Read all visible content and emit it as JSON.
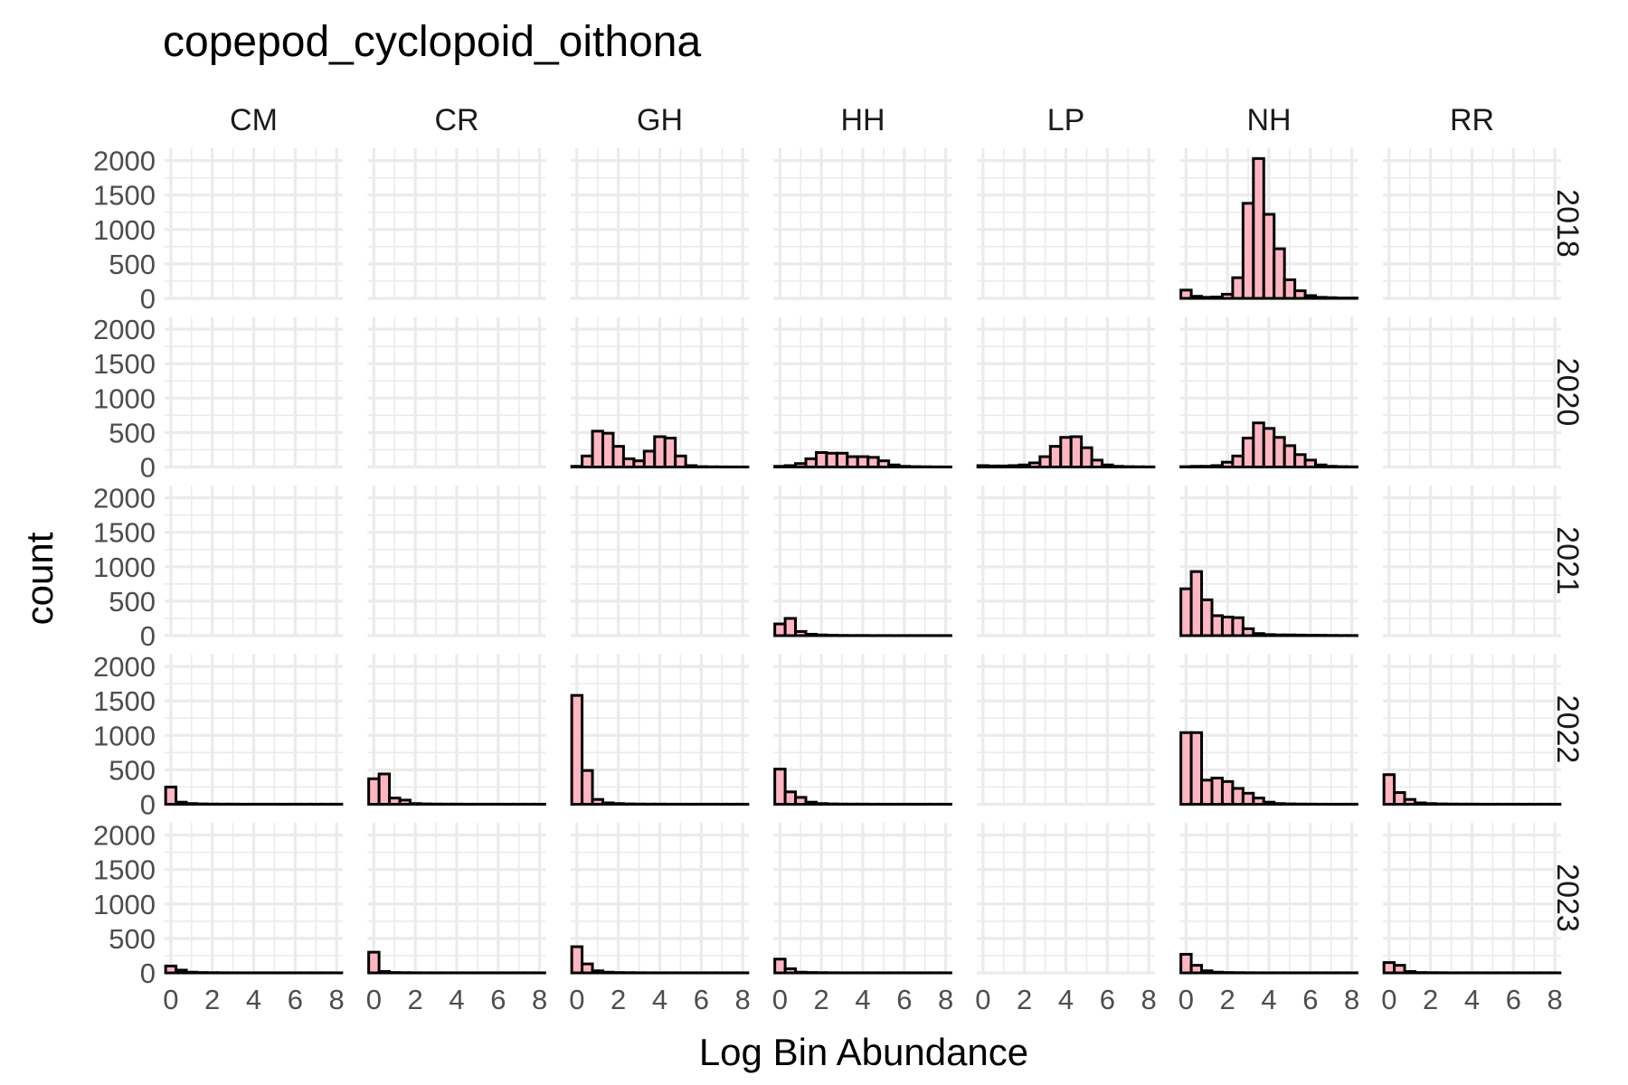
{
  "chart_data": {
    "type": "bar",
    "subtype": "faceted-histogram",
    "title": "copepod_cyclopoid_oithona",
    "xlabel": "Log Bin Abundance",
    "ylabel": "count",
    "facet_columns": [
      "CM",
      "CR",
      "GH",
      "HH",
      "LP",
      "NH",
      "RR"
    ],
    "facet_rows": [
      "2018",
      "2020",
      "2021",
      "2022",
      "2023"
    ],
    "xlim": [
      -0.3,
      8.3
    ],
    "ylim": [
      0,
      2100
    ],
    "x_ticks": [
      0,
      2,
      4,
      6,
      8
    ],
    "y_ticks": [
      0,
      500,
      1000,
      1500,
      2000
    ],
    "bin_width": 0.5,
    "bin_starts": [
      -0.25,
      0.25,
      0.75,
      1.25,
      1.75,
      2.25,
      2.75,
      3.25,
      3.75,
      4.25,
      4.75,
      5.25,
      5.75,
      6.25,
      6.75,
      7.25,
      7.75
    ],
    "bar_fill": "#ffb6c1",
    "bar_outline": "#000000",
    "grid": true,
    "panels": [
      {
        "row": "2018",
        "col": "NH",
        "counts": [
          120,
          30,
          15,
          20,
          60,
          300,
          1380,
          2030,
          1220,
          720,
          270,
          110,
          40,
          15,
          10,
          5,
          5
        ]
      },
      {
        "row": "2020",
        "col": "GH",
        "counts": [
          10,
          160,
          520,
          490,
          300,
          120,
          90,
          230,
          440,
          420,
          160,
          20,
          5,
          3,
          2,
          1,
          1
        ]
      },
      {
        "row": "2020",
        "col": "HH",
        "counts": [
          10,
          20,
          50,
          120,
          210,
          200,
          200,
          150,
          150,
          140,
          90,
          30,
          10,
          5,
          3,
          2,
          1
        ]
      },
      {
        "row": "2020",
        "col": "LP",
        "counts": [
          20,
          15,
          15,
          20,
          30,
          60,
          150,
          300,
          430,
          440,
          280,
          100,
          30,
          10,
          5,
          3,
          2
        ]
      },
      {
        "row": "2020",
        "col": "NH",
        "counts": [
          5,
          10,
          10,
          20,
          70,
          160,
          420,
          640,
          560,
          430,
          310,
          180,
          100,
          30,
          10,
          5,
          3
        ]
      },
      {
        "row": "2021",
        "col": "HH",
        "counts": [
          170,
          250,
          60,
          20,
          10,
          5,
          3,
          2,
          2,
          1,
          1,
          1,
          1,
          1,
          1,
          1,
          1
        ]
      },
      {
        "row": "2021",
        "col": "NH",
        "counts": [
          680,
          930,
          520,
          290,
          270,
          260,
          100,
          30,
          15,
          10,
          10,
          8,
          5,
          5,
          3,
          2,
          2
        ]
      },
      {
        "row": "2022",
        "col": "CM",
        "counts": [
          250,
          30,
          10,
          5,
          3,
          2,
          2,
          1,
          1,
          1,
          1,
          1,
          1,
          1,
          1,
          1,
          1
        ]
      },
      {
        "row": "2022",
        "col": "CR",
        "counts": [
          370,
          440,
          90,
          60,
          10,
          5,
          3,
          2,
          2,
          1,
          1,
          1,
          1,
          1,
          1,
          1,
          1
        ]
      },
      {
        "row": "2022",
        "col": "GH",
        "counts": [
          1580,
          490,
          70,
          20,
          10,
          5,
          3,
          2,
          2,
          1,
          1,
          1,
          1,
          1,
          1,
          1,
          1
        ]
      },
      {
        "row": "2022",
        "col": "HH",
        "counts": [
          510,
          180,
          100,
          30,
          10,
          5,
          3,
          2,
          2,
          1,
          1,
          1,
          1,
          1,
          1,
          1,
          1
        ]
      },
      {
        "row": "2022",
        "col": "NH",
        "counts": [
          1040,
          1040,
          350,
          380,
          330,
          230,
          160,
          90,
          30,
          10,
          5,
          3,
          2,
          1,
          1,
          1,
          1
        ]
      },
      {
        "row": "2022",
        "col": "RR",
        "counts": [
          430,
          170,
          70,
          20,
          10,
          5,
          3,
          2,
          2,
          1,
          1,
          1,
          1,
          1,
          1,
          1,
          1
        ]
      },
      {
        "row": "2023",
        "col": "CM",
        "counts": [
          100,
          40,
          10,
          5,
          3,
          2,
          1,
          1,
          1,
          1,
          1,
          1,
          1,
          1,
          1,
          1,
          1
        ]
      },
      {
        "row": "2023",
        "col": "CR",
        "counts": [
          300,
          20,
          5,
          3,
          2,
          1,
          1,
          1,
          1,
          1,
          1,
          1,
          1,
          1,
          1,
          1,
          1
        ]
      },
      {
        "row": "2023",
        "col": "GH",
        "counts": [
          380,
          130,
          30,
          10,
          5,
          3,
          2,
          1,
          1,
          1,
          1,
          1,
          1,
          1,
          1,
          1,
          1
        ]
      },
      {
        "row": "2023",
        "col": "HH",
        "counts": [
          200,
          60,
          10,
          5,
          3,
          2,
          1,
          1,
          1,
          1,
          1,
          1,
          1,
          1,
          1,
          1,
          1
        ]
      },
      {
        "row": "2023",
        "col": "NH",
        "counts": [
          270,
          110,
          30,
          10,
          5,
          3,
          2,
          1,
          1,
          1,
          1,
          1,
          1,
          1,
          1,
          1,
          1
        ]
      },
      {
        "row": "2023",
        "col": "RR",
        "counts": [
          150,
          110,
          20,
          5,
          3,
          2,
          1,
          1,
          1,
          1,
          1,
          1,
          1,
          1,
          1,
          1,
          1
        ]
      }
    ]
  }
}
